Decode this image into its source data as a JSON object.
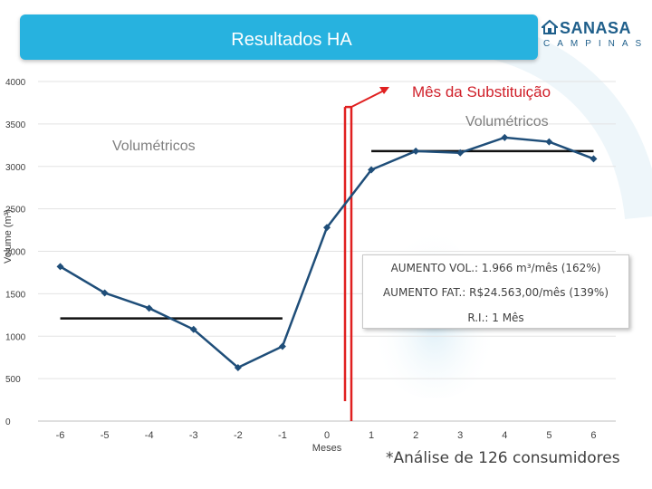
{
  "header": {
    "title": "Resultados HA",
    "logo_word": "SANASA",
    "logo_sub": "CAMPINAS"
  },
  "colors": {
    "title_bar": "#27b2df",
    "series": "#1f4e79",
    "substitution_line": "#e02020",
    "annotation_red": "#d0202a",
    "average_line": "#111111"
  },
  "chart_data": {
    "type": "line",
    "title": "",
    "xlabel": "Meses",
    "ylabel": "Volume (m³)",
    "ylim": [
      0,
      4000
    ],
    "yticks": [
      0,
      500,
      1000,
      1500,
      2000,
      2500,
      3000,
      3500,
      4000
    ],
    "x": [
      -6,
      -5,
      -4,
      -3,
      -2,
      -1,
      0,
      1,
      2,
      3,
      4,
      5,
      6
    ],
    "series": [
      {
        "name": "",
        "values": [
          1820,
          1510,
          1330,
          1080,
          630,
          880,
          2280,
          2960,
          3180,
          3160,
          3340,
          3290,
          3090
        ]
      }
    ],
    "averages": [
      {
        "from_x": -6,
        "to_x": -1,
        "y": 1210
      },
      {
        "from_x": 1,
        "to_x": 6,
        "y": 3180
      }
    ],
    "substitution_marker": {
      "between_x": [
        0,
        1
      ]
    },
    "grid": "horizontal",
    "legend": "none",
    "annotations": {
      "substitution_label": "Mês da Substituição",
      "volumetricos_before": "Volumétricos",
      "volumetricos_after": "Volumétricos"
    }
  },
  "info_box": {
    "line1": "AUMENTO VOL.: 1.966 m³/mês (162%)",
    "line2": "AUMENTO FAT.: R$24.563,00/mês (139%)",
    "line3": "R.I.: 1 Mês"
  },
  "footnote": "*Análise de 126 consumidores"
}
